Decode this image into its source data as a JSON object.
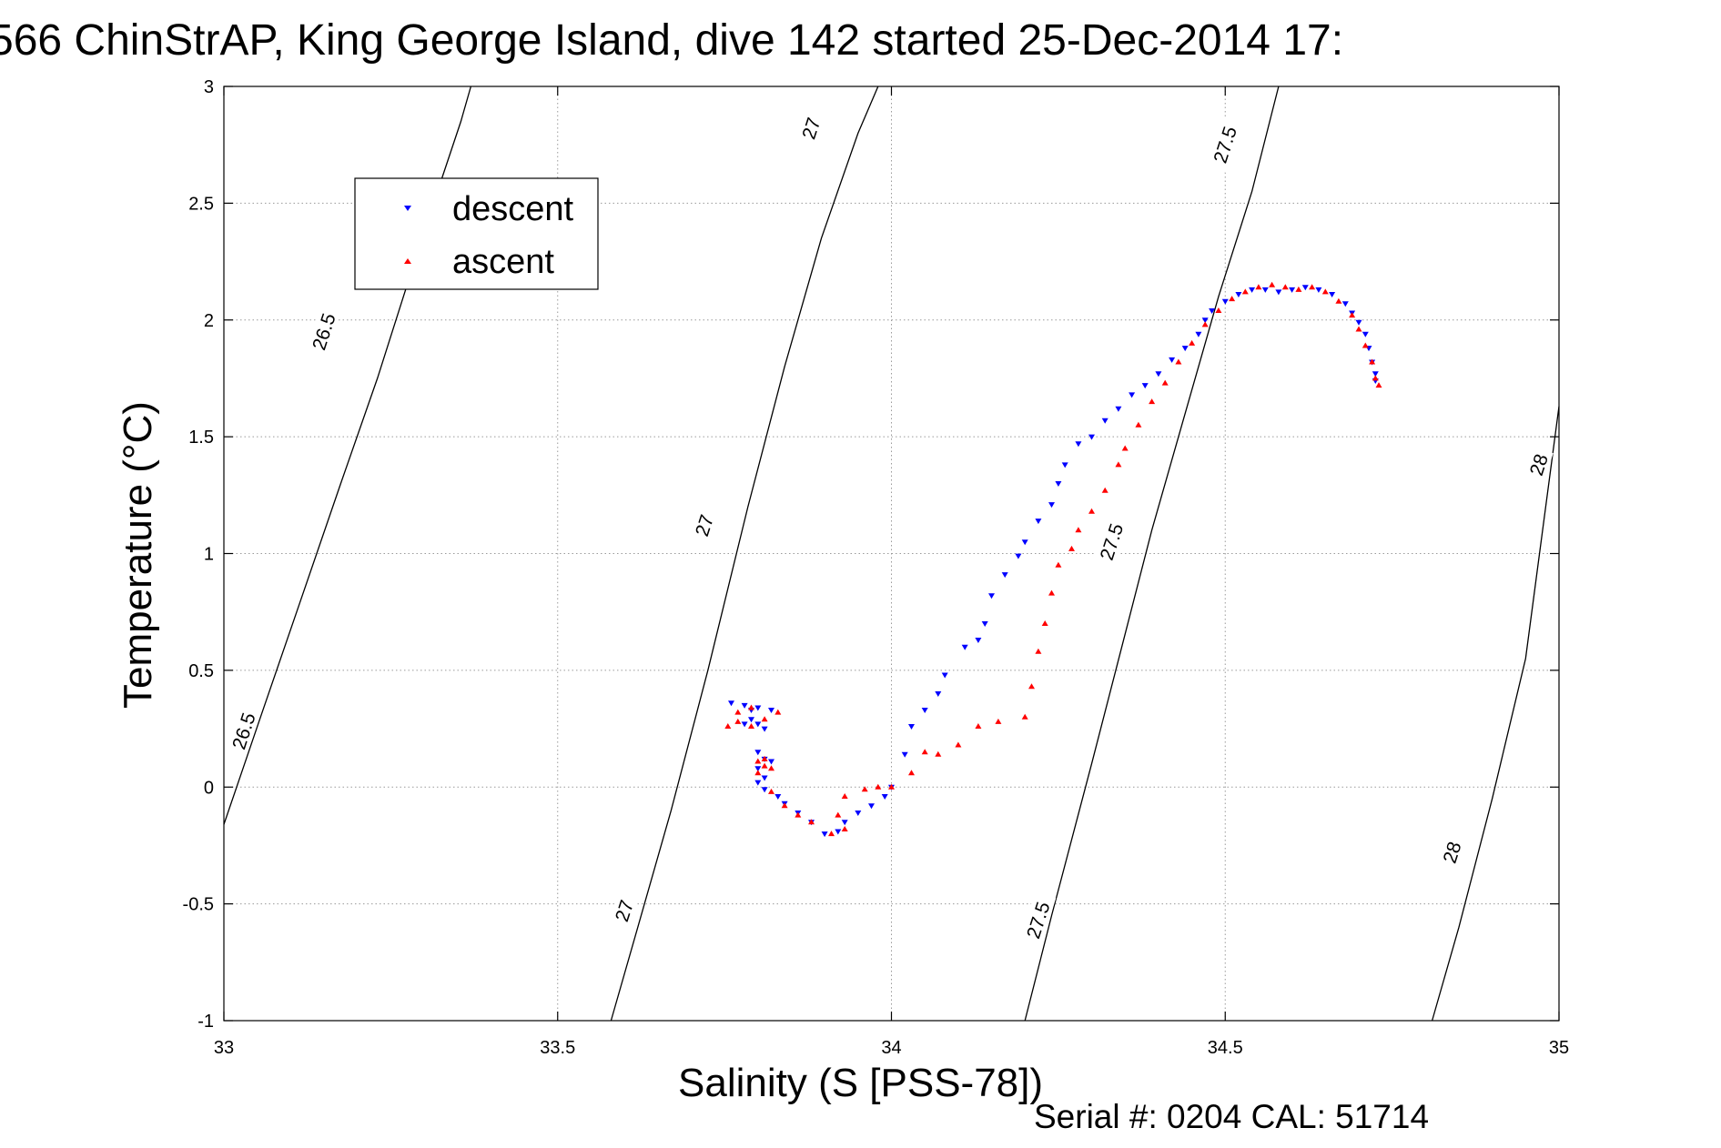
{
  "chart_data": {
    "type": "scatter",
    "title": "566 ChinStrAP, King George Island, dive 142 started 25-Dec-2014 17:",
    "xlabel": "Salinity (S [PSS-78])",
    "ylabel": "Temperature (°C)",
    "xlim": [
      33,
      35
    ],
    "ylim": [
      -1,
      3
    ],
    "grid": true,
    "xticks": [
      33,
      33.5,
      34,
      34.5,
      35
    ],
    "xtick_labels": [
      "33",
      "33.5",
      "34",
      "34.5",
      "35"
    ],
    "yticks": [
      -1,
      -0.5,
      0,
      0.5,
      1,
      1.5,
      2,
      2.5,
      3
    ],
    "ytick_labels": [
      "-1",
      "-0.5",
      "0",
      "0.5",
      "1",
      "1.5",
      "2",
      "2.5",
      "3"
    ],
    "legend": {
      "position": "top-left",
      "entries": [
        "descent",
        "ascent"
      ]
    },
    "isopycnals": [
      {
        "level": "26.5",
        "points": [
          [
            33.0,
            -0.16
          ],
          [
            33.055,
            0.3
          ],
          [
            33.115,
            0.8
          ],
          [
            33.175,
            1.3
          ],
          [
            33.23,
            1.75
          ],
          [
            33.28,
            2.2
          ],
          [
            33.32,
            2.55
          ],
          [
            33.355,
            2.85
          ],
          [
            33.37,
            3.0
          ]
        ]
      },
      {
        "level": "27",
        "points": [
          [
            33.58,
            -1.0
          ],
          [
            33.62,
            -0.6
          ],
          [
            33.67,
            -0.1
          ],
          [
            33.725,
            0.5
          ],
          [
            33.785,
            1.2
          ],
          [
            33.84,
            1.8
          ],
          [
            33.895,
            2.35
          ],
          [
            33.95,
            2.8
          ],
          [
            33.98,
            3.0
          ]
        ]
      },
      {
        "level": "27.5",
        "points": [
          [
            34.2,
            -1.0
          ],
          [
            34.24,
            -0.55
          ],
          [
            34.3,
            0.1
          ],
          [
            34.345,
            0.6
          ],
          [
            34.39,
            1.1
          ],
          [
            34.445,
            1.65
          ],
          [
            34.49,
            2.1
          ],
          [
            34.54,
            2.55
          ],
          [
            34.58,
            3.0
          ]
        ]
      },
      {
        "level": "28",
        "points": [
          [
            34.81,
            -1.0
          ],
          [
            34.85,
            -0.6
          ],
          [
            34.9,
            -0.05
          ],
          [
            34.95,
            0.55
          ],
          [
            35.0,
            1.63
          ]
        ]
      }
    ],
    "contour_labels": [
      {
        "text": "26.5",
        "s": 33.15,
        "t": 1.95,
        "angle": -72
      },
      {
        "text": "26.5",
        "s": 33.03,
        "t": 0.24,
        "angle": -72
      },
      {
        "text": "27",
        "s": 33.88,
        "t": 2.82,
        "angle": -72
      },
      {
        "text": "27",
        "s": 33.72,
        "t": 1.12,
        "angle": -72
      },
      {
        "text": "27",
        "s": 33.6,
        "t": -0.53,
        "angle": -72
      },
      {
        "text": "27.5",
        "s": 34.5,
        "t": 2.75,
        "angle": -72
      },
      {
        "text": "27.5",
        "s": 34.33,
        "t": 1.05,
        "angle": -72
      },
      {
        "text": "27.5",
        "s": 34.22,
        "t": -0.57,
        "angle": -72
      },
      {
        "text": "28",
        "s": 34.97,
        "t": 1.38,
        "angle": -72
      },
      {
        "text": "28",
        "s": 34.84,
        "t": -0.28,
        "angle": -72
      }
    ],
    "series": [
      {
        "name": "descent",
        "color": "#0000ff",
        "marker": "triangle-down",
        "points": [
          [
            33.76,
            0.36
          ],
          [
            33.78,
            0.35
          ],
          [
            33.79,
            0.33
          ],
          [
            33.8,
            0.34
          ],
          [
            33.82,
            0.33
          ],
          [
            33.79,
            0.29
          ],
          [
            33.8,
            0.27
          ],
          [
            33.81,
            0.25
          ],
          [
            33.78,
            0.27
          ],
          [
            33.8,
            0.15
          ],
          [
            33.81,
            0.12
          ],
          [
            33.82,
            0.11
          ],
          [
            33.8,
            0.08
          ],
          [
            33.81,
            0.04
          ],
          [
            33.8,
            0.02
          ],
          [
            33.81,
            -0.01
          ],
          [
            33.83,
            -0.04
          ],
          [
            33.84,
            -0.07
          ],
          [
            33.86,
            -0.11
          ],
          [
            33.88,
            -0.15
          ],
          [
            33.9,
            -0.2
          ],
          [
            33.92,
            -0.19
          ],
          [
            33.93,
            -0.15
          ],
          [
            33.95,
            -0.11
          ],
          [
            33.97,
            -0.08
          ],
          [
            33.99,
            -0.04
          ],
          [
            34.0,
            0.0
          ],
          [
            34.02,
            0.14
          ],
          [
            34.03,
            0.26
          ],
          [
            34.05,
            0.33
          ],
          [
            34.07,
            0.4
          ],
          [
            34.08,
            0.48
          ],
          [
            34.11,
            0.6
          ],
          [
            34.13,
            0.63
          ],
          [
            34.14,
            0.7
          ],
          [
            34.15,
            0.82
          ],
          [
            34.17,
            0.91
          ],
          [
            34.19,
            0.99
          ],
          [
            34.2,
            1.05
          ],
          [
            34.22,
            1.14
          ],
          [
            34.24,
            1.21
          ],
          [
            34.25,
            1.3
          ],
          [
            34.26,
            1.38
          ],
          [
            34.28,
            1.47
          ],
          [
            34.3,
            1.5
          ],
          [
            34.32,
            1.57
          ],
          [
            34.34,
            1.62
          ],
          [
            34.36,
            1.68
          ],
          [
            34.38,
            1.72
          ],
          [
            34.4,
            1.77
          ],
          [
            34.42,
            1.83
          ],
          [
            34.44,
            1.88
          ],
          [
            34.46,
            1.94
          ],
          [
            34.47,
            2.0
          ],
          [
            34.48,
            2.04
          ],
          [
            34.5,
            2.08
          ],
          [
            34.52,
            2.11
          ],
          [
            34.54,
            2.13
          ],
          [
            34.56,
            2.13
          ],
          [
            34.58,
            2.12
          ],
          [
            34.6,
            2.13
          ],
          [
            34.62,
            2.14
          ],
          [
            34.64,
            2.13
          ],
          [
            34.66,
            2.11
          ],
          [
            34.68,
            2.07
          ],
          [
            34.69,
            2.03
          ],
          [
            34.7,
            1.99
          ],
          [
            34.71,
            1.94
          ],
          [
            34.715,
            1.88
          ],
          [
            34.72,
            1.82
          ],
          [
            34.725,
            1.77
          ],
          [
            34.725,
            1.74
          ]
        ]
      },
      {
        "name": "ascent",
        "color": "#ff0000",
        "marker": "triangle-up",
        "points": [
          [
            33.755,
            0.26
          ],
          [
            33.77,
            0.28
          ],
          [
            33.79,
            0.26
          ],
          [
            33.77,
            0.32
          ],
          [
            33.79,
            0.34
          ],
          [
            33.81,
            0.29
          ],
          [
            33.83,
            0.32
          ],
          [
            33.8,
            0.11
          ],
          [
            33.81,
            0.09
          ],
          [
            33.8,
            0.06
          ],
          [
            33.82,
            0.08
          ],
          [
            33.81,
            0.12
          ],
          [
            33.82,
            -0.02
          ],
          [
            33.84,
            -0.08
          ],
          [
            33.86,
            -0.12
          ],
          [
            33.88,
            -0.15
          ],
          [
            33.91,
            -0.2
          ],
          [
            33.93,
            -0.18
          ],
          [
            33.92,
            -0.12
          ],
          [
            33.93,
            -0.04
          ],
          [
            33.96,
            -0.01
          ],
          [
            33.98,
            0.0
          ],
          [
            34.0,
            0.0
          ],
          [
            34.03,
            0.06
          ],
          [
            34.05,
            0.15
          ],
          [
            34.07,
            0.14
          ],
          [
            34.1,
            0.18
          ],
          [
            34.13,
            0.26
          ],
          [
            34.16,
            0.28
          ],
          [
            34.2,
            0.3
          ],
          [
            34.21,
            0.43
          ],
          [
            34.22,
            0.58
          ],
          [
            34.23,
            0.7
          ],
          [
            34.24,
            0.83
          ],
          [
            34.25,
            0.95
          ],
          [
            34.27,
            1.02
          ],
          [
            34.28,
            1.1
          ],
          [
            34.3,
            1.18
          ],
          [
            34.32,
            1.27
          ],
          [
            34.34,
            1.38
          ],
          [
            34.35,
            1.45
          ],
          [
            34.37,
            1.55
          ],
          [
            34.39,
            1.65
          ],
          [
            34.41,
            1.73
          ],
          [
            34.43,
            1.82
          ],
          [
            34.45,
            1.9
          ],
          [
            34.47,
            1.98
          ],
          [
            34.49,
            2.04
          ],
          [
            34.51,
            2.09
          ],
          [
            34.53,
            2.12
          ],
          [
            34.55,
            2.14
          ],
          [
            34.57,
            2.15
          ],
          [
            34.59,
            2.14
          ],
          [
            34.61,
            2.13
          ],
          [
            34.63,
            2.14
          ],
          [
            34.65,
            2.12
          ],
          [
            34.67,
            2.08
          ],
          [
            34.69,
            2.02
          ],
          [
            34.7,
            1.96
          ],
          [
            34.71,
            1.89
          ],
          [
            34.72,
            1.82
          ],
          [
            34.725,
            1.75
          ],
          [
            34.73,
            1.72
          ]
        ]
      }
    ]
  },
  "footer": {
    "serial": "Serial #: 0204  CAL: 51714"
  }
}
